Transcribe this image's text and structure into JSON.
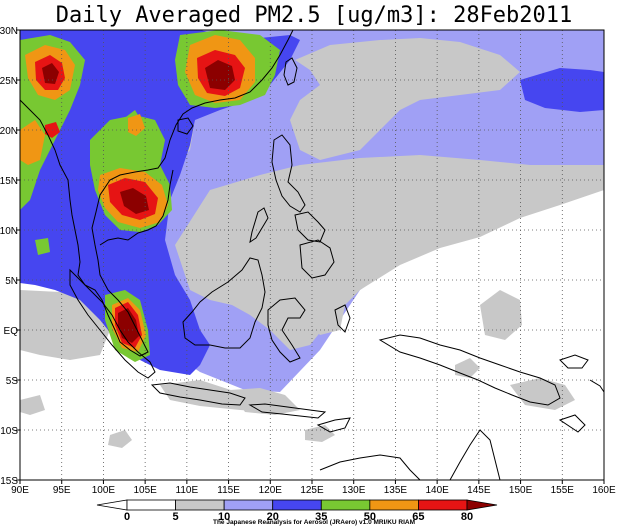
{
  "title": "Daily Averaged PM2.5 [ug/m3]: 28Feb2011",
  "credit": "The Japanese Reanalysis for Aerosol (JRAero) v1.0 MRI/KU RIAM",
  "map": {
    "lon_range": [
      90,
      160
    ],
    "lat_range": [
      -15,
      30
    ],
    "lon_ticks": [
      "90E",
      "95E",
      "100E",
      "105E",
      "110E",
      "115E",
      "120E",
      "125E",
      "130E",
      "135E",
      "140E",
      "145E",
      "150E",
      "155E",
      "160E"
    ],
    "lat_ticks": [
      "15S",
      "10S",
      "5S",
      "EQ",
      "5N",
      "10N",
      "15N",
      "20N",
      "25N",
      "30N"
    ],
    "grid": true,
    "grid_style": "dotted"
  },
  "colorbar": {
    "labels": [
      "0",
      "5",
      "10",
      "20",
      "35",
      "50",
      "65",
      "80"
    ],
    "bins": [
      {
        "label": "<0",
        "color": "#ffffff"
      },
      {
        "label": "0-5",
        "color": "#ffffff"
      },
      {
        "label": "5-10",
        "color": "#c8c8c8"
      },
      {
        "label": "10-20",
        "color": "#a0a0f5"
      },
      {
        "label": "20-35",
        "color": "#4646f0"
      },
      {
        "label": "35-50",
        "color": "#78c832"
      },
      {
        "label": "50-65",
        "color": "#f09614"
      },
      {
        "label": "65-80",
        "color": "#e61414"
      },
      {
        "label": ">80",
        "color": "#8c0000"
      }
    ]
  },
  "colors": {
    "c0": "#ffffff",
    "c5": "#c8c8c8",
    "c10": "#a0a0f5",
    "c20": "#4646f0",
    "c35": "#78c832",
    "c50": "#f09614",
    "c65": "#e61414",
    "c80": "#8c0000"
  }
}
